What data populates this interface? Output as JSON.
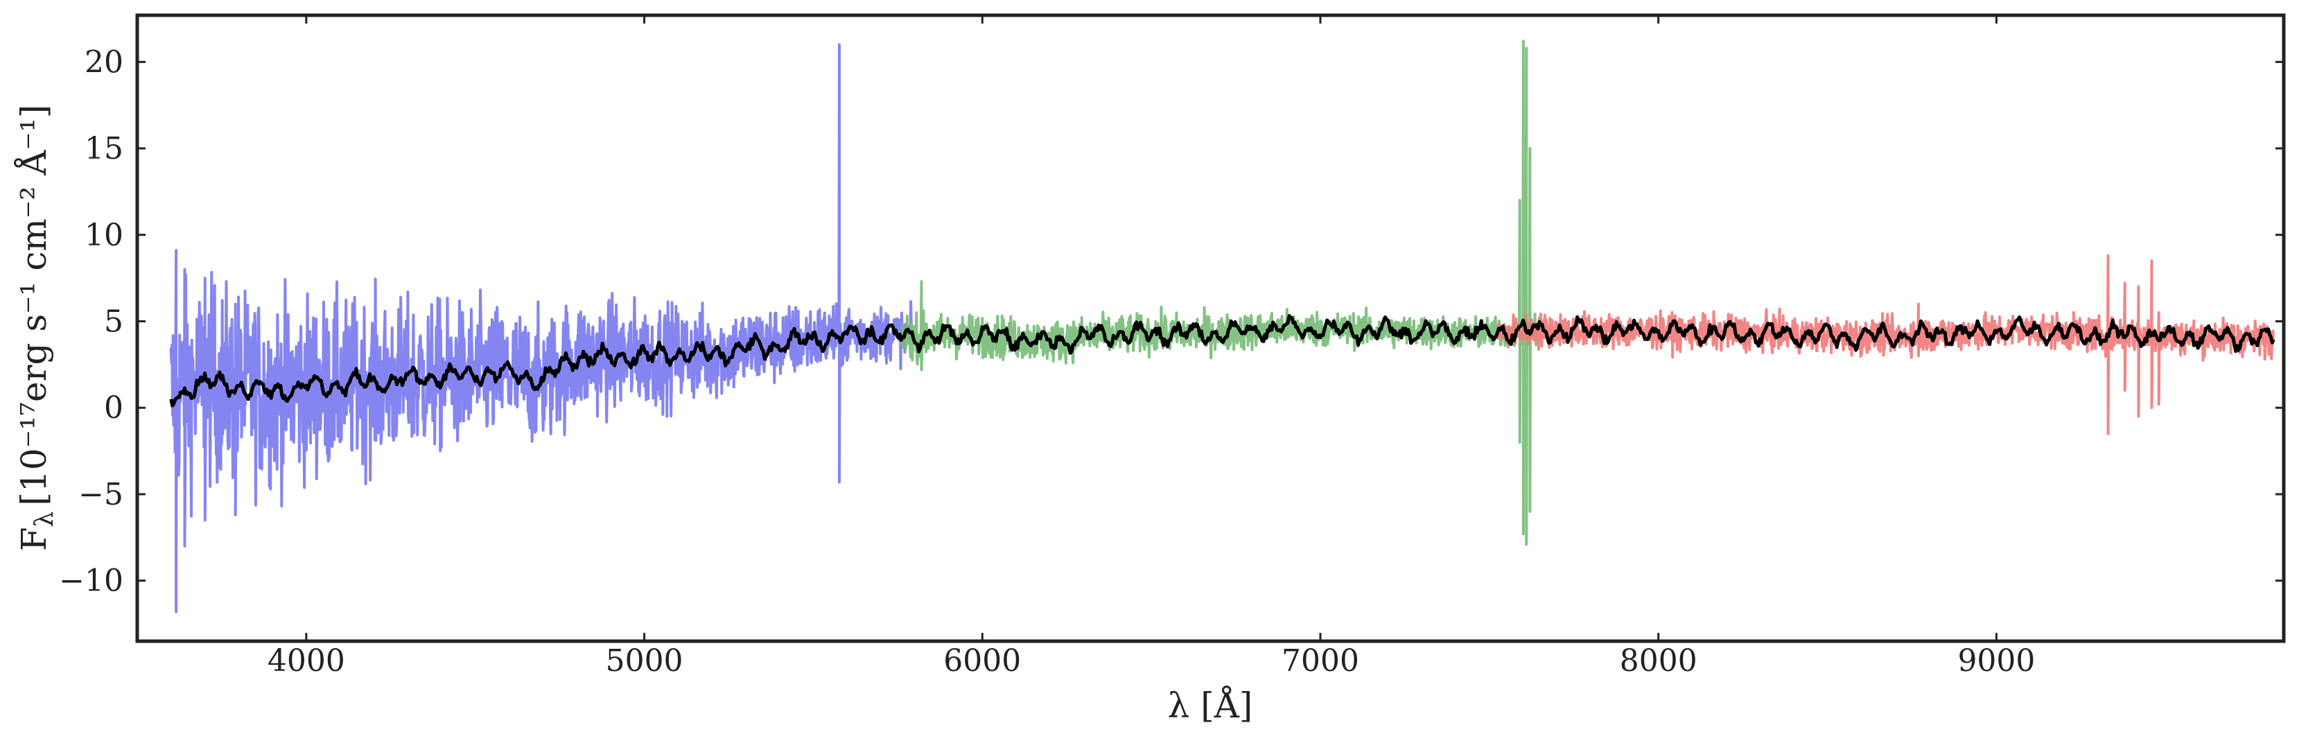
{
  "chart_data": {
    "type": "line",
    "xlabel": "λ [Å]",
    "ylabel_prefix": "F",
    "ylabel_sub": "λ",
    "ylabel_units": "[10⁻¹⁷erg s⁻¹ cm⁻² Å⁻¹]",
    "xlim": [
      3500,
      9850
    ],
    "ylim": [
      -13.5,
      22.7
    ],
    "xticks": [
      4000,
      5000,
      6000,
      7000,
      8000,
      9000
    ],
    "yticks": [
      -10,
      -5,
      0,
      5,
      10,
      15,
      20
    ],
    "xtick_labels": [
      "4000",
      "5000",
      "6000",
      "7000",
      "8000",
      "9000"
    ],
    "ytick_labels": [
      "−10",
      "−5",
      "0",
      "5",
      "10",
      "15",
      "20"
    ],
    "grid": false,
    "series": [
      {
        "color": "#7b7bf0",
        "range": [
          3600,
          5790
        ],
        "noise_at_start": 4.2,
        "noise_at_end": 1.0,
        "spikes": [
          {
            "x": 5577,
            "top": 21.0,
            "bottom": -4.3
          },
          {
            "x": 3615,
            "top": 9.1,
            "bottom": -11.8
          },
          {
            "x": 3640,
            "top": 8.0,
            "bottom": -8.0
          },
          {
            "x": 3700,
            "top": 7.5,
            "bottom": -6.5
          },
          {
            "x": 3790,
            "top": 6.0,
            "bottom": -6.2
          }
        ]
      },
      {
        "color": "#78bd78",
        "range": [
          5760,
          7640
        ],
        "noise_at_start": 0.9,
        "noise_at_end": 0.6,
        "spikes": [
          {
            "x": 5820,
            "top": 7.3,
            "bottom": 2.2
          },
          {
            "x": 7600,
            "top": 21.2,
            "bottom": -7.3
          },
          {
            "x": 7610,
            "top": 20.8,
            "bottom": -7.9
          },
          {
            "x": 7620,
            "top": 15.0,
            "bottom": -6.0
          },
          {
            "x": 7590,
            "top": 12.0,
            "bottom": -2.0
          }
        ]
      },
      {
        "color": "#f27b7b",
        "range": [
          7520,
          9820
        ],
        "noise_at_start": 0.7,
        "noise_at_end": 0.7,
        "spikes": [
          {
            "x": 9330,
            "top": 8.8,
            "bottom": -1.5
          },
          {
            "x": 9380,
            "top": 7.2,
            "bottom": 1.0
          },
          {
            "x": 9420,
            "top": 7.0,
            "bottom": -0.5
          },
          {
            "x": 9460,
            "top": 8.5,
            "bottom": 0.0
          },
          {
            "x": 9480,
            "top": 5.5,
            "bottom": 0.2
          },
          {
            "x": 8770,
            "top": 6.0,
            "bottom": 3.0
          }
        ]
      },
      {
        "color": "#000000",
        "range": [
          3600,
          9820
        ],
        "smoothed": true
      }
    ],
    "continuum": {
      "x": [
        3600,
        3650,
        3700,
        3800,
        3900,
        4000,
        4200,
        4400,
        4600,
        4700,
        4750,
        4800,
        5000,
        5100,
        5200,
        5300,
        5400,
        5500,
        5600,
        5700,
        5790,
        6000,
        6200,
        6300,
        6500,
        6700,
        6900,
        7100,
        7300,
        7500,
        7700,
        8000,
        8300,
        8600,
        8900,
        9100,
        9300,
        9400,
        9500,
        9700,
        9820
      ],
      "y": [
        0.5,
        1.2,
        1.5,
        1.2,
        1.0,
        1.2,
        1.5,
        1.8,
        2.0,
        1.5,
        2.3,
        2.9,
        3.0,
        3.1,
        3.1,
        3.4,
        3.7,
        4.0,
        4.2,
        4.3,
        4.1,
        4.2,
        3.8,
        4.1,
        4.3,
        4.3,
        4.6,
        4.5,
        4.4,
        4.3,
        4.5,
        4.4,
        4.3,
        4.1,
        4.3,
        4.5,
        4.2,
        4.3,
        4.1,
        4.1,
        3.9
      ]
    }
  }
}
